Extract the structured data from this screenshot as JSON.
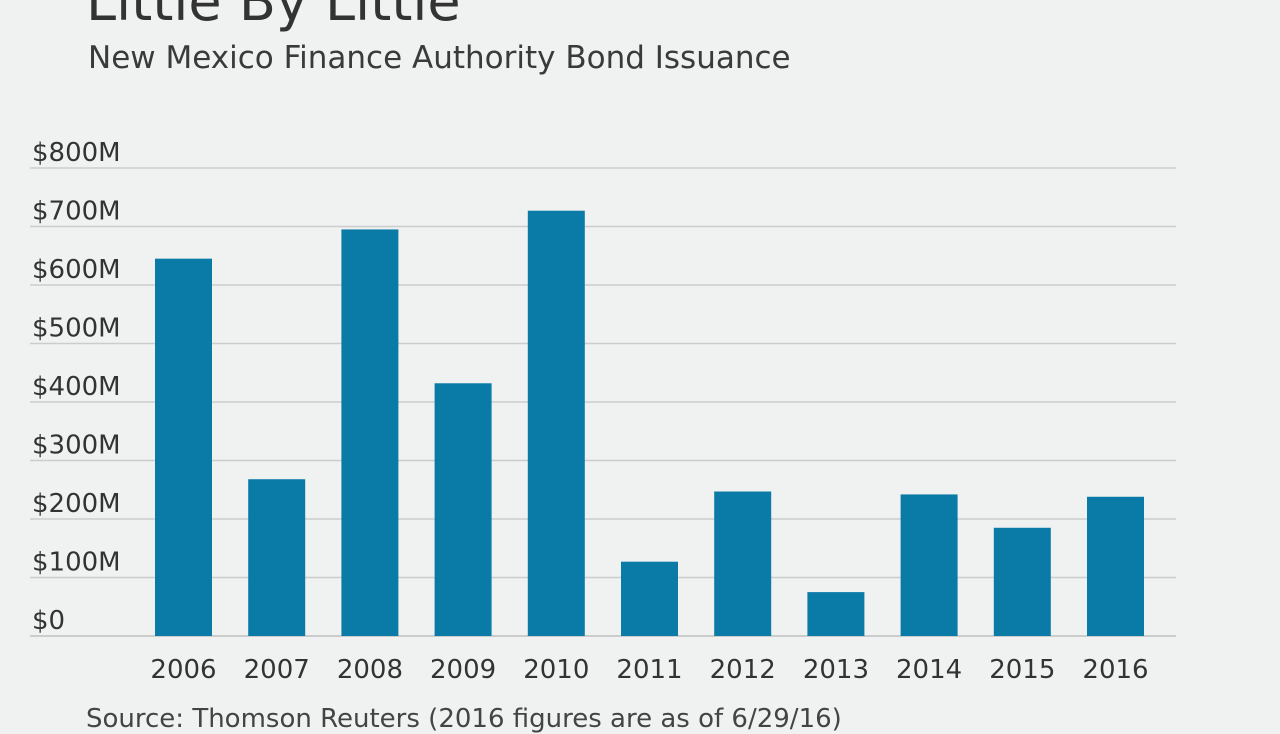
{
  "title": "Little By Little",
  "subtitle": "New Mexico Finance Authority Bond Issuance",
  "source": "Source: Thomson Reuters (2016 figures are as of 6/29/16)",
  "colors": {
    "bar": "#0a7aa6",
    "grid": "#cccccc",
    "background": "#f0f2f2"
  },
  "chart_data": {
    "type": "bar",
    "categories": [
      "2006",
      "2007",
      "2008",
      "2009",
      "2010",
      "2011",
      "2012",
      "2013",
      "2014",
      "2015",
      "2016"
    ],
    "values": [
      645,
      268,
      695,
      432,
      727,
      127,
      247,
      75,
      242,
      185,
      238
    ],
    "ylim": [
      0,
      800
    ],
    "yticks": [
      0,
      100,
      200,
      300,
      400,
      500,
      600,
      700,
      800
    ],
    "ytick_labels": [
      "$0",
      "$100M",
      "$200M",
      "$300M",
      "$400M",
      "$500M",
      "$600M",
      "$700M",
      "$800M"
    ],
    "grid": true
  }
}
